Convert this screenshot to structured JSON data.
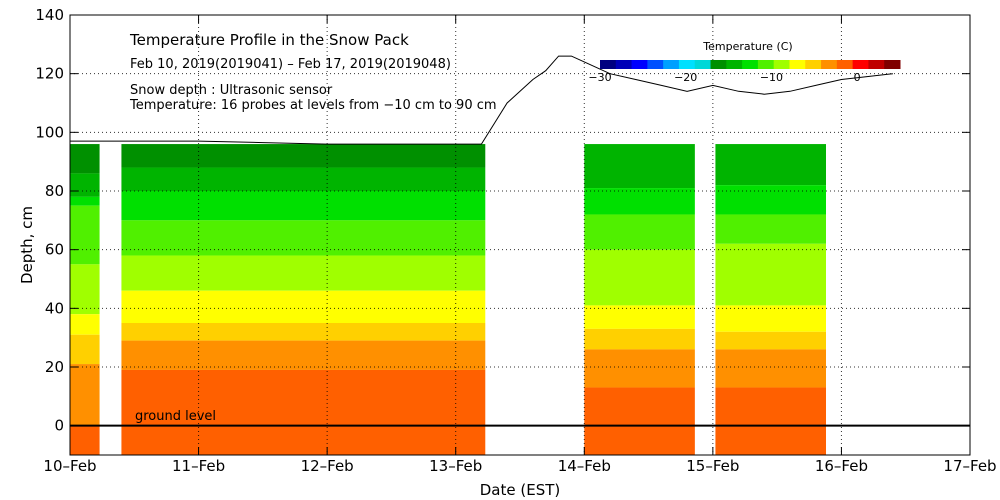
{
  "chart_data": {
    "type": "area",
    "title": "Temperature Profile in the Snow Pack",
    "subtitle": "Feb 10, 2019(2019041) – Feb 17, 2019(2019048)",
    "annotations": [
      "Snow depth : Ultrasonic sensor",
      "Temperature: 16 probes at levels from −10 cm to 90 cm",
      "ground level"
    ],
    "xlabel": "Date (EST)",
    "ylabel": "Depth, cm",
    "x_ticks": [
      "10–Feb",
      "11–Feb",
      "12–Feb",
      "13–Feb",
      "14–Feb",
      "15–Feb",
      "16–Feb",
      "17–Feb"
    ],
    "y_ticks": [
      "0",
      "20",
      "40",
      "60",
      "80",
      "100",
      "120",
      "140"
    ],
    "xlim": [
      0,
      7
    ],
    "ylim": [
      -10,
      140
    ],
    "grid": true,
    "legend": {
      "title": "Temperature (C)",
      "placement": "top-right",
      "range": [
        -30,
        5
      ],
      "tick_labels": [
        "−30",
        "−20",
        "−10",
        "0"
      ],
      "tick_values": [
        -30,
        -20,
        -10,
        0
      ],
      "colors": [
        "#000080",
        "#0000b8",
        "#0000ff",
        "#0050ff",
        "#00a0ff",
        "#00e0ff",
        "#00d8d8",
        "#009000",
        "#00b400",
        "#00e000",
        "#50f000",
        "#a0ff00",
        "#ffff00",
        "#ffd000",
        "#ff9000",
        "#ff6000",
        "#ff0000",
        "#c00000",
        "#800000"
      ]
    },
    "temperature_bands": [
      {
        "temp": -9,
        "color": "#009000"
      },
      {
        "temp": -8,
        "color": "#00b400"
      },
      {
        "temp": -7,
        "color": "#00e000"
      },
      {
        "temp": -6,
        "color": "#50f000"
      },
      {
        "temp": -5,
        "color": "#a0ff00"
      },
      {
        "temp": -4,
        "color": "#ffff00"
      },
      {
        "temp": -3,
        "color": "#ffd000"
      },
      {
        "temp": -2,
        "color": "#ff9000"
      },
      {
        "temp": -1,
        "color": "#ff6000"
      },
      {
        "temp": 0,
        "color": "#ff0000"
      }
    ],
    "temperature_segments": [
      {
        "x_start": 0.0,
        "x_end": 0.23,
        "top": 96,
        "band_tops": [
          96,
          86,
          78,
          75,
          55,
          38,
          31,
          21,
          0,
          -10
        ]
      },
      {
        "x_start": 0.4,
        "x_end": 3.23,
        "top": 96,
        "band_tops": [
          96,
          88,
          80,
          70,
          58,
          46,
          35,
          29,
          19,
          -10
        ]
      },
      {
        "x_start": 4.0,
        "x_end": 4.86,
        "top": 96,
        "band_tops": [
          96,
          96,
          81,
          72,
          60,
          41,
          33,
          26,
          13,
          -10
        ]
      },
      {
        "x_start": 5.02,
        "x_end": 5.88,
        "top": 96,
        "band_tops": [
          96,
          96,
          82,
          72,
          62,
          41,
          32,
          26,
          13,
          -10
        ]
      }
    ],
    "snow_depth": {
      "x": [
        0,
        0.5,
        1.0,
        1.5,
        2.0,
        2.5,
        3.0,
        3.15,
        3.2,
        3.3,
        3.4,
        3.5,
        3.6,
        3.7,
        3.8,
        3.9,
        4.0,
        4.2,
        4.4,
        4.6,
        4.8,
        5.0,
        5.2,
        5.4,
        5.6,
        5.8,
        6.0,
        6.2,
        6.4
      ],
      "y": [
        97,
        97,
        97,
        96.5,
        96,
        96,
        96,
        96,
        96,
        103,
        110,
        114,
        118,
        121,
        126,
        126,
        124,
        120,
        118,
        116,
        114,
        116,
        114,
        113,
        114,
        116,
        118,
        119,
        120
      ]
    }
  }
}
